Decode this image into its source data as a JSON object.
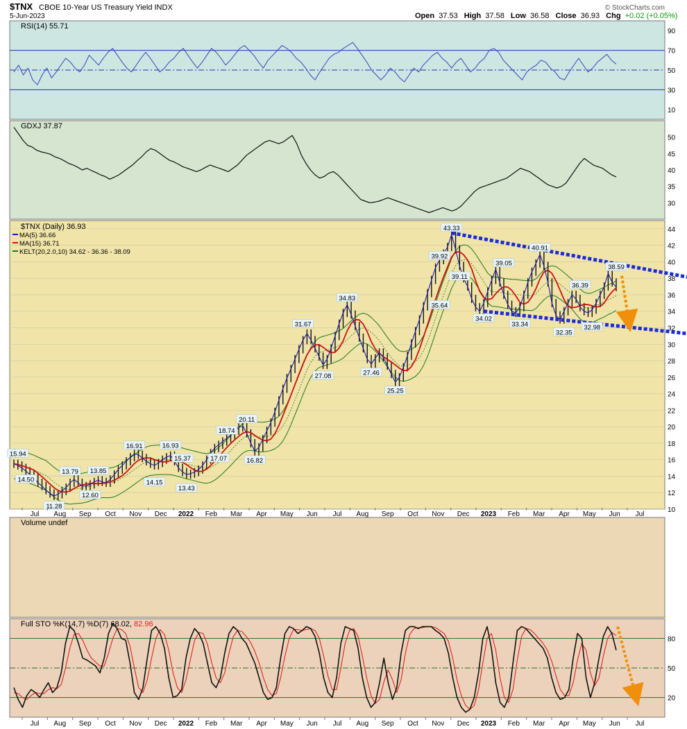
{
  "header": {
    "symbol": "$TNX",
    "name": "CBOE 10-Year US Treasury Yield INDX",
    "date": "5-Jun-2023",
    "open_label": "Open",
    "open": "37.53",
    "high_label": "High",
    "high": "37.58",
    "low_label": "Low",
    "low": "36.58",
    "close_label": "Close",
    "close": "36.93",
    "chg_label": "Chg",
    "chg": "+0.02 (+0.05%)",
    "credit": "© StockCharts.com",
    "chg_color": "#0a9a0a"
  },
  "x_axis_labels": [
    "Jul",
    "Aug",
    "Sep",
    "Oct",
    "Nov",
    "Dec",
    "2022",
    "Feb",
    "Mar",
    "Apr",
    "May",
    "Jun",
    "Jul",
    "Aug",
    "Sep",
    "Oct",
    "Nov",
    "Dec",
    "2023",
    "Feb",
    "Mar",
    "Apr",
    "May",
    "Jun",
    "Jul"
  ],
  "bold_labels": [
    "2022",
    "2023"
  ],
  "chart_data": [
    {
      "type": "line",
      "panel": "RSI",
      "legend": "RSI(14) 55.71",
      "ylim": [
        0,
        100
      ],
      "ticks": [
        10,
        30,
        50,
        70,
        90
      ],
      "levels": [
        30,
        50,
        70
      ],
      "color": "#3344bb",
      "background": "#cde6e2",
      "values": [
        48,
        55,
        45,
        52,
        40,
        35,
        45,
        52,
        42,
        48,
        55,
        62,
        58,
        52,
        48,
        55,
        65,
        60,
        55,
        62,
        68,
        72,
        65,
        58,
        52,
        48,
        55,
        62,
        68,
        62,
        55,
        48,
        52,
        58,
        62,
        68,
        72,
        65,
        58,
        52,
        58,
        65,
        72,
        68,
        62,
        55,
        60,
        66,
        72,
        75,
        70,
        65,
        58,
        52,
        60,
        65,
        70,
        75,
        72,
        68,
        62,
        58,
        52,
        45,
        40,
        48,
        55,
        62,
        66,
        68,
        72,
        75,
        78,
        72,
        65,
        58,
        50,
        45,
        40,
        45,
        52,
        48,
        42,
        38,
        45,
        52,
        48,
        55,
        60,
        65,
        68,
        62,
        58,
        52,
        58,
        62,
        55,
        48,
        52,
        58,
        62,
        70,
        72,
        68,
        60,
        55,
        50,
        45,
        40,
        48,
        52,
        55,
        60,
        58,
        52,
        48,
        42,
        40,
        48,
        55,
        62,
        55,
        48,
        52,
        58,
        62,
        66,
        60,
        56
      ]
    },
    {
      "type": "line",
      "panel": "GDXJ",
      "legend": "GDXJ 37.87",
      "ylim": [
        25,
        55
      ],
      "ticks": [
        30,
        35,
        40,
        45,
        50
      ],
      "color": "#111111",
      "background": "#d5e5cf",
      "values": [
        53.0,
        51.0,
        49.0,
        47.5,
        47.0,
        46.0,
        45.5,
        45.2,
        44.8,
        44.0,
        43.5,
        42.8,
        42.0,
        41.5,
        40.8,
        40.0,
        40.5,
        39.8,
        39.2,
        38.5,
        38.0,
        37.2,
        37.8,
        38.5,
        39.5,
        40.5,
        41.5,
        42.8,
        44.0,
        45.5,
        46.5,
        46.0,
        45.0,
        44.0,
        43.0,
        42.5,
        41.8,
        41.0,
        40.5,
        40.0,
        39.5,
        40.0,
        40.8,
        41.5,
        41.0,
        40.5,
        40.0,
        39.5,
        40.5,
        41.5,
        43.0,
        44.5,
        45.5,
        46.5,
        47.5,
        48.5,
        49.0,
        48.5,
        48.0,
        48.5,
        49.5,
        50.5,
        48.0,
        44.5,
        42.0,
        40.0,
        38.5,
        37.5,
        38.0,
        39.0,
        39.5,
        38.5,
        37.0,
        35.5,
        34.0,
        32.5,
        31.0,
        30.5,
        30.0,
        30.2,
        30.5,
        31.0,
        31.5,
        31.0,
        30.5,
        30.0,
        29.5,
        29.0,
        28.5,
        28.0,
        27.5,
        27.0,
        27.5,
        28.0,
        28.5,
        28.0,
        27.5,
        28.0,
        29.0,
        30.5,
        32.0,
        33.5,
        34.5,
        35.0,
        35.5,
        36.0,
        36.5,
        37.0,
        37.5,
        38.5,
        39.5,
        40.5,
        40.0,
        39.5,
        38.5,
        37.5,
        36.5,
        35.5,
        35.0,
        34.5,
        35.0,
        36.0,
        38.0,
        40.0,
        42.0,
        43.5,
        42.5,
        41.5,
        41.0,
        40.5,
        39.5,
        38.5,
        37.87
      ]
    },
    {
      "type": "line",
      "panel": "TNX",
      "legend": "$TNX (Daily) 36.93",
      "ylim": [
        10,
        45
      ],
      "ticks": [
        10,
        12,
        14,
        16,
        18,
        20,
        22,
        24,
        26,
        28,
        30,
        32,
        34,
        36,
        38,
        40,
        42,
        44
      ],
      "background": "#f0e4a8",
      "series": [
        {
          "name": "MA(5) 36.66",
          "color": "#1a1ab5"
        },
        {
          "name": "MA(15) 36.71",
          "color": "#cc1111"
        },
        {
          "name": "KELT(20,2.0,10) 34.62 - 36.36 - 38.09",
          "color": "#1f7a1f"
        }
      ],
      "values": [
        15.5,
        15.3,
        15.0,
        14.6,
        14.2,
        13.8,
        13.2,
        12.8,
        12.3,
        11.9,
        11.6,
        11.8,
        12.2,
        12.6,
        13.2,
        13.6,
        13.2,
        12.8,
        12.8,
        13.0,
        13.3,
        13.5,
        13.3,
        13.2,
        13.6,
        14.2,
        14.8,
        15.3,
        15.8,
        16.3,
        16.7,
        16.6,
        16.2,
        15.8,
        15.5,
        15.3,
        15.6,
        16.0,
        16.3,
        16.5,
        15.8,
        15.0,
        14.5,
        14.2,
        14.3,
        14.5,
        14.8,
        15.3,
        16.0,
        16.8,
        17.4,
        17.8,
        18.2,
        18.6,
        19.0,
        19.5,
        19.9,
        20.1,
        19.2,
        18.0,
        17.0,
        17.5,
        18.5,
        19.5,
        20.5,
        21.8,
        23.2,
        24.6,
        25.9,
        27.0,
        28.2,
        29.4,
        30.5,
        31.3,
        30.5,
        29.5,
        28.5,
        27.5,
        28.2,
        29.5,
        31.0,
        32.5,
        33.8,
        34.8,
        33.6,
        32.2,
        30.8,
        29.5,
        28.2,
        27.6,
        28.3,
        29.0,
        28.4,
        27.4,
        26.4,
        25.4,
        26.0,
        27.2,
        28.6,
        30.1,
        31.6,
        33.0,
        34.6,
        36.2,
        37.8,
        39.3,
        40.2,
        41.0,
        41.8,
        43.3,
        41.5,
        39.5,
        38.0,
        37.0,
        35.5,
        34.5,
        34.0,
        35.0,
        36.4,
        37.8,
        39.1,
        37.5,
        36.0,
        34.8,
        34.0,
        33.8,
        34.5,
        36.0,
        37.5,
        38.8,
        39.8,
        40.9,
        39.5,
        37.5,
        35.0,
        33.5,
        33.0,
        34.0,
        35.0,
        36.0,
        35.5,
        34.5,
        34.0,
        33.8,
        34.2,
        35.0,
        36.0,
        37.0,
        38.6,
        37.5,
        36.93
      ],
      "annotations": [
        {
          "label": "15.94",
          "x": 1,
          "y": 15.94,
          "pos": "above"
        },
        {
          "label": "14.50",
          "x": 3,
          "y": 14.5,
          "pos": "below"
        },
        {
          "label": "11.28",
          "x": 10,
          "y": 11.28,
          "pos": "below"
        },
        {
          "label": "13.79",
          "x": 14,
          "y": 13.79,
          "pos": "above"
        },
        {
          "label": "13.85",
          "x": 21,
          "y": 13.85,
          "pos": "above"
        },
        {
          "label": "12.60",
          "x": 19,
          "y": 12.6,
          "pos": "below"
        },
        {
          "label": "16.91",
          "x": 30,
          "y": 16.91,
          "pos": "above"
        },
        {
          "label": "14.15",
          "x": 35,
          "y": 14.15,
          "pos": "below"
        },
        {
          "label": "16.93",
          "x": 39,
          "y": 16.93,
          "pos": "above"
        },
        {
          "label": "15.37",
          "x": 42,
          "y": 15.37,
          "pos": "above"
        },
        {
          "label": "13.43",
          "x": 43,
          "y": 13.43,
          "pos": "below"
        },
        {
          "label": "18.74",
          "x": 53,
          "y": 18.74,
          "pos": "above"
        },
        {
          "label": "17.07",
          "x": 51,
          "y": 17.07,
          "pos": "below"
        },
        {
          "label": "20.11",
          "x": 58,
          "y": 20.11,
          "pos": "above"
        },
        {
          "label": "16.82",
          "x": 60,
          "y": 16.82,
          "pos": "below"
        },
        {
          "label": "31.67",
          "x": 72,
          "y": 31.67,
          "pos": "above"
        },
        {
          "label": "27.08",
          "x": 77,
          "y": 27.08,
          "pos": "below"
        },
        {
          "label": "34.83",
          "x": 83,
          "y": 34.83,
          "pos": "above"
        },
        {
          "label": "27.46",
          "x": 89,
          "y": 27.46,
          "pos": "below"
        },
        {
          "label": "25.25",
          "x": 95,
          "y": 25.25,
          "pos": "below"
        },
        {
          "label": "39.92",
          "x": 106,
          "y": 39.92,
          "pos": "above"
        },
        {
          "label": "35.64",
          "x": 106,
          "y": 35.64,
          "pos": "below"
        },
        {
          "label": "43.33",
          "x": 109,
          "y": 43.33,
          "pos": "above"
        },
        {
          "label": "39.11",
          "x": 111,
          "y": 39.11,
          "pos": "below"
        },
        {
          "label": "34.02",
          "x": 117,
          "y": 34.02,
          "pos": "below"
        },
        {
          "label": "39.05",
          "x": 122,
          "y": 39.05,
          "pos": "above"
        },
        {
          "label": "33.34",
          "x": 126,
          "y": 33.34,
          "pos": "below"
        },
        {
          "label": "40.91",
          "x": 131,
          "y": 40.91,
          "pos": "above"
        },
        {
          "label": "36.39",
          "x": 141,
          "y": 36.39,
          "pos": "above"
        },
        {
          "label": "32.35",
          "x": 137,
          "y": 32.35,
          "pos": "below"
        },
        {
          "label": "32.98",
          "x": 144,
          "y": 32.98,
          "pos": "below"
        },
        {
          "label": "38.59",
          "x": 150,
          "y": 38.59,
          "pos": "above"
        }
      ],
      "trendlines": [
        {
          "from": [
            109,
            43.5
          ],
          "to": [
            159,
            38.0
          ],
          "color": "#1a2ad8"
        },
        {
          "from": [
            117,
            34.0
          ],
          "to": [
            159,
            31.2
          ],
          "color": "#1a2ad8"
        }
      ],
      "arrow_color": "#f0900a"
    },
    {
      "type": "bar",
      "panel": "Volume",
      "legend": "Volume undef",
      "background": "#ecd8b4",
      "values": []
    },
    {
      "type": "line",
      "panel": "STO",
      "legend_prefix": "Full STO %K(14,7) %D(7) 68.02,",
      "legend_d": "82.96",
      "ylim": [
        0,
        100
      ],
      "ticks": [
        20,
        50,
        80
      ],
      "levels": [
        20,
        50,
        80
      ],
      "background": "#ecd2ba",
      "series": [
        {
          "name": "%K",
          "color": "#111111"
        },
        {
          "name": "%D",
          "color": "#dd2222"
        }
      ],
      "k_values": [
        30,
        18,
        10,
        22,
        28,
        25,
        20,
        28,
        35,
        25,
        30,
        45,
        75,
        92,
        88,
        75,
        60,
        58,
        55,
        52,
        45,
        60,
        85,
        95,
        90,
        80,
        78,
        55,
        25,
        18,
        30,
        60,
        88,
        92,
        85,
        70,
        40,
        20,
        22,
        28,
        60,
        80,
        90,
        85,
        75,
        55,
        35,
        30,
        40,
        65,
        85,
        92,
        88,
        80,
        75,
        65,
        55,
        40,
        25,
        18,
        20,
        30,
        60,
        85,
        92,
        90,
        85,
        88,
        92,
        90,
        82,
        65,
        40,
        25,
        20,
        40,
        75,
        92,
        90,
        88,
        70,
        40,
        20,
        10,
        15,
        35,
        60,
        35,
        18,
        30,
        65,
        88,
        92,
        92,
        90,
        92,
        92,
        92,
        88,
        85,
        80,
        65,
        40,
        20,
        10,
        5,
        8,
        20,
        45,
        80,
        92,
        70,
        35,
        15,
        10,
        20,
        55,
        88,
        92,
        90,
        85,
        80,
        75,
        70,
        60,
        40,
        25,
        18,
        20,
        28,
        60,
        85,
        80,
        40,
        20,
        35,
        60,
        82,
        92,
        85,
        68
      ],
      "d_values": [
        25,
        24,
        20,
        18,
        22,
        25,
        24,
        24,
        28,
        30,
        29,
        33,
        50,
        70,
        84,
        85,
        78,
        68,
        60,
        56,
        52,
        52,
        65,
        80,
        90,
        89,
        85,
        72,
        50,
        30,
        25,
        38,
        60,
        80,
        89,
        84,
        68,
        45,
        30,
        25,
        38,
        58,
        78,
        86,
        85,
        74,
        55,
        40,
        35,
        45,
        65,
        82,
        88,
        87,
        82,
        76,
        67,
        55,
        40,
        28,
        22,
        24,
        40,
        62,
        80,
        89,
        89,
        88,
        89,
        90,
        88,
        80,
        62,
        42,
        28,
        28,
        50,
        75,
        88,
        90,
        82,
        62,
        40,
        22,
        14,
        18,
        36,
        48,
        38,
        25,
        38,
        65,
        84,
        90,
        91,
        91,
        92,
        92,
        91,
        88,
        85,
        77,
        60,
        38,
        22,
        12,
        8,
        12,
        28,
        55,
        80,
        85,
        68,
        40,
        20,
        15,
        28,
        58,
        82,
        90,
        89,
        85,
        80,
        75,
        68,
        57,
        42,
        28,
        22,
        22,
        35,
        58,
        75,
        68,
        45,
        32,
        40,
        62,
        80,
        86,
        83
      ],
      "final_k": 68.02,
      "final_d": 82.96
    }
  ]
}
